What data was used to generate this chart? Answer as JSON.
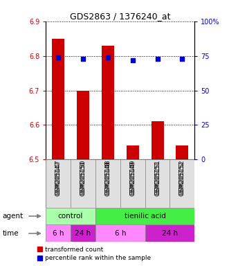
{
  "title": "GDS2863 / 1376240_at",
  "samples": [
    "GSM205147",
    "GSM205150",
    "GSM205148",
    "GSM205149",
    "GSM205151",
    "GSM205152"
  ],
  "bar_values": [
    6.85,
    6.7,
    6.83,
    6.54,
    6.61,
    6.54
  ],
  "percentile_values": [
    74,
    73,
    74,
    72,
    73,
    73
  ],
  "ylim_left": [
    6.5,
    6.9
  ],
  "ylim_right": [
    0,
    100
  ],
  "yticks_left": [
    6.5,
    6.6,
    6.7,
    6.8,
    6.9
  ],
  "ytick_labels_left": [
    "6.5",
    "6.6",
    "6.7",
    "6.8",
    "6.9"
  ],
  "yticks_right": [
    0,
    25,
    50,
    75,
    100
  ],
  "ytick_labels_right": [
    "0",
    "25",
    "50",
    "75",
    "100%"
  ],
  "bar_color": "#cc0000",
  "dot_color": "#0000cc",
  "bar_bottom": 6.5,
  "agent_light_color": "#aaffaa",
  "agent_dark_color": "#44ee44",
  "time_light_color": "#ff88ff",
  "time_dark_color": "#cc22cc",
  "legend_red_label": "transformed count",
  "legend_blue_label": "percentile rank within the sample",
  "left_color": "#cc0000",
  "right_color": "#0000cc",
  "tick_gray": "#aaaaaa"
}
